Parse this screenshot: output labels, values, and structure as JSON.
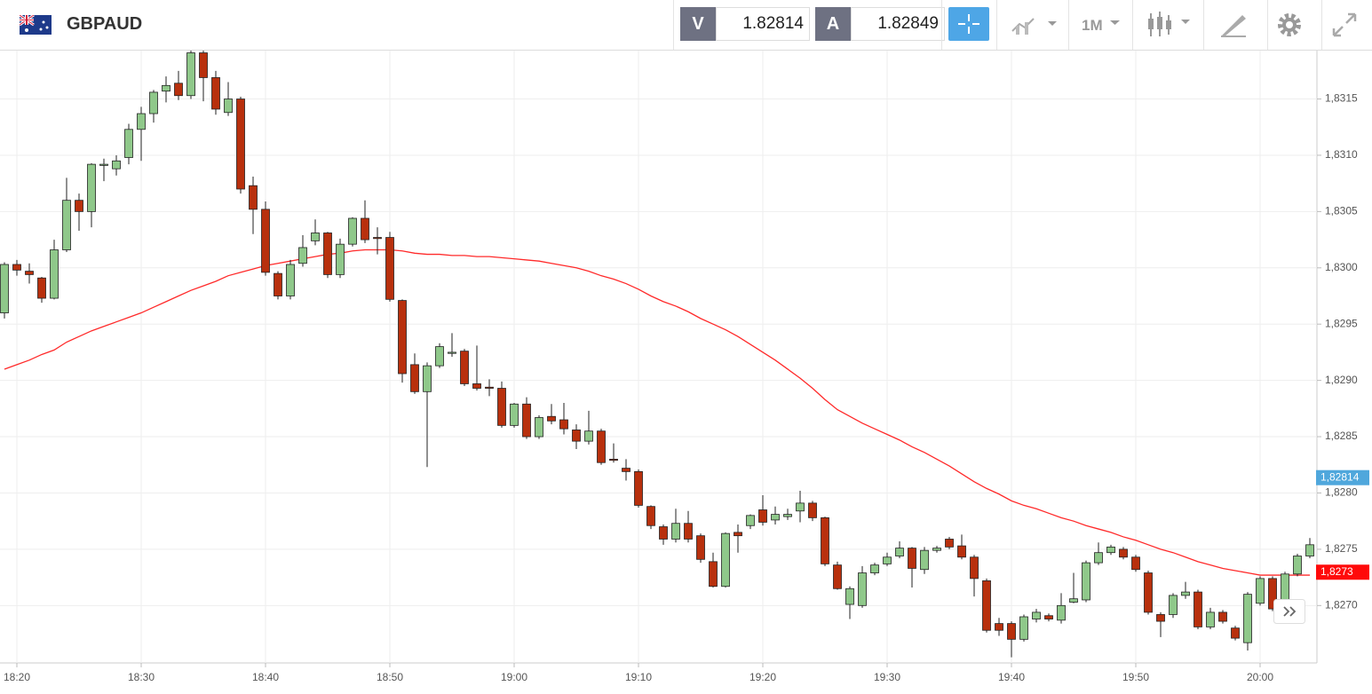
{
  "header": {
    "symbol": "GBPAUD",
    "bid_label": "V",
    "bid": 1.82814,
    "ask_label": "A",
    "ask": 1.82849,
    "timeframe": "1M"
  },
  "chart_data": {
    "type": "candlestick",
    "categories": [
      null,
      "18:20",
      null,
      null,
      null,
      null,
      null,
      null,
      null,
      null,
      null,
      "18:30",
      null,
      null,
      null,
      null,
      null,
      null,
      null,
      null,
      null,
      "18:40",
      null,
      null,
      null,
      null,
      null,
      null,
      null,
      null,
      null,
      "18:50",
      null,
      null,
      null,
      null,
      null,
      null,
      null,
      null,
      null,
      "19:00",
      null,
      null,
      null,
      null,
      null,
      null,
      null,
      null,
      null,
      "19:10",
      null,
      null,
      null,
      null,
      null,
      null,
      null,
      null,
      null,
      "19:20",
      null,
      null,
      null,
      null,
      null,
      null,
      null,
      null,
      null,
      "19:30",
      null,
      null,
      null,
      null,
      null,
      null,
      null,
      null,
      null,
      "19:40",
      null,
      null,
      null,
      null,
      null,
      null,
      null,
      null,
      null,
      "19:50",
      null,
      null,
      null,
      null,
      null,
      null,
      null,
      null,
      null,
      "20:00",
      null,
      null,
      null,
      null
    ],
    "open": [
      1.8296,
      1.83003,
      1.82997,
      1.82991,
      1.82973,
      1.83016,
      1.8306,
      1.8305,
      1.83091,
      1.83088,
      1.83098,
      1.83123,
      1.83137,
      1.83157,
      1.83164,
      1.83153,
      1.83191,
      1.83169,
      1.83138,
      1.8315,
      1.83073,
      1.83052,
      1.82995,
      1.82975,
      1.83004,
      1.83024,
      1.83031,
      1.82994,
      1.83021,
      1.83044,
      1.83027,
      1.83027,
      1.82971,
      1.82914,
      1.8289,
      1.82913,
      1.82924,
      1.82926,
      1.82897,
      1.82894,
      1.82893,
      1.8286,
      1.82879,
      1.8285,
      1.82868,
      1.82865,
      1.82856,
      1.82846,
      1.82855,
      1.8283,
      1.82822,
      1.82819,
      1.82788,
      1.8277,
      1.82759,
      1.82773,
      1.82762,
      1.82739,
      1.82717,
      1.82765,
      1.82771,
      1.82785,
      1.82776,
      1.82779,
      1.82784,
      1.82791,
      1.82778,
      1.82736,
      1.82701,
      1.827,
      1.82729,
      1.82737,
      1.82744,
      1.82751,
      1.82732,
      1.82749,
      1.82759,
      1.82753,
      1.82743,
      1.82722,
      1.82684,
      1.82684,
      1.8267,
      1.82688,
      1.82691,
      1.82687,
      1.82703,
      1.82705,
      1.82738,
      1.82747,
      1.8275,
      1.82743,
      1.82729,
      1.82692,
      1.82692,
      1.82709,
      1.82712,
      1.82681,
      1.82694,
      1.8268,
      1.82667,
      1.82702,
      1.82724,
      1.82697,
      1.82728,
      1.82744
    ],
    "high": [
      1.83005,
      1.83007,
      1.83004,
      1.82992,
      1.83025,
      1.8308,
      1.83066,
      1.83093,
      1.83097,
      1.831,
      1.83128,
      1.83143,
      1.83158,
      1.8317,
      1.83175,
      1.83193,
      1.83193,
      1.83175,
      1.83165,
      1.83152,
      1.83081,
      1.83059,
      1.82997,
      1.83007,
      1.83029,
      1.83043,
      1.83032,
      1.83026,
      1.83045,
      1.8306,
      1.83036,
      1.83032,
      1.82972,
      1.82924,
      1.82916,
      1.82933,
      1.82942,
      1.82928,
      1.82931,
      1.82901,
      1.82899,
      1.8288,
      1.82885,
      1.82869,
      1.82879,
      1.8288,
      1.82861,
      1.82873,
      1.82857,
      1.82844,
      1.8283,
      1.82821,
      1.82789,
      1.82772,
      1.82786,
      1.82784,
      1.82764,
      1.82747,
      1.82765,
      1.82772,
      1.82781,
      1.82798,
      1.82788,
      1.82786,
      1.82802,
      1.82793,
      1.82779,
      1.82739,
      1.82717,
      1.82735,
      1.82738,
      1.82747,
      1.82757,
      1.82752,
      1.82752,
      1.82753,
      1.82761,
      1.82763,
      1.82745,
      1.82724,
      1.82689,
      1.82686,
      1.82692,
      1.82697,
      1.82693,
      1.82711,
      1.82729,
      1.8274,
      1.82756,
      1.82754,
      1.82752,
      1.82745,
      1.82731,
      1.82694,
      1.82711,
      1.82721,
      1.82714,
      1.82698,
      1.82696,
      1.82682,
      1.82712,
      1.82726,
      1.82726,
      1.8273,
      1.82746,
      1.8276
    ],
    "low": [
      1.82955,
      1.82993,
      1.82986,
      1.82969,
      1.82972,
      1.83014,
      1.83033,
      1.83036,
      1.83077,
      1.83082,
      1.83092,
      1.83095,
      1.83129,
      1.83147,
      1.83149,
      1.8315,
      1.83148,
      1.83136,
      1.83135,
      1.83066,
      1.8303,
      1.82993,
      1.82972,
      1.82972,
      1.83001,
      1.8302,
      1.82991,
      1.82991,
      1.83019,
      1.83022,
      1.83012,
      1.8297,
      1.82898,
      1.82888,
      1.82823,
      1.82911,
      1.82921,
      1.82895,
      1.82891,
      1.82886,
      1.82858,
      1.82858,
      1.82848,
      1.82848,
      1.82861,
      1.82852,
      1.82839,
      1.82843,
      1.82825,
      1.82827,
      1.82811,
      1.82787,
      1.82768,
      1.82754,
      1.82756,
      1.82756,
      1.82738,
      1.82716,
      1.82716,
      1.82747,
      1.82768,
      1.82771,
      1.82772,
      1.82776,
      1.82774,
      1.82775,
      1.82735,
      1.82714,
      1.82688,
      1.82698,
      1.82727,
      1.82735,
      1.82742,
      1.82716,
      1.82728,
      1.82747,
      1.8275,
      1.82741,
      1.82708,
      1.82676,
      1.82673,
      1.82654,
      1.82668,
      1.82685,
      1.82686,
      1.82684,
      1.82702,
      1.82703,
      1.82736,
      1.82745,
      1.82741,
      1.8273,
      1.82692,
      1.82672,
      1.82689,
      1.82706,
      1.82679,
      1.82679,
      1.82684,
      1.82669,
      1.8266,
      1.827,
      1.82695,
      1.82695,
      1.82726,
      1.82742
    ],
    "close": [
      1.83003,
      1.82998,
      1.82994,
      1.82973,
      1.83016,
      1.8306,
      1.8305,
      1.83092,
      1.83092,
      1.83095,
      1.83123,
      1.83137,
      1.83156,
      1.83162,
      1.83153,
      1.83191,
      1.83169,
      1.83141,
      1.8315,
      1.8307,
      1.83052,
      1.82996,
      1.82975,
      1.83003,
      1.83018,
      1.83031,
      1.82994,
      1.83021,
      1.83044,
      1.83025,
      1.83026,
      1.82972,
      1.82906,
      1.8289,
      1.82913,
      1.8293,
      1.82925,
      1.82897,
      1.82893,
      1.82893,
      1.8286,
      1.82879,
      1.8285,
      1.82867,
      1.82864,
      1.82857,
      1.82846,
      1.82855,
      1.82827,
      1.82829,
      1.82819,
      1.82789,
      1.82771,
      1.82759,
      1.82773,
      1.82759,
      1.82741,
      1.82717,
      1.82764,
      1.82762,
      1.8278,
      1.82774,
      1.82781,
      1.82781,
      1.82791,
      1.82778,
      1.82737,
      1.82715,
      1.82715,
      1.82729,
      1.82736,
      1.82743,
      1.82751,
      1.82733,
      1.82749,
      1.82751,
      1.82752,
      1.82743,
      1.82724,
      1.82678,
      1.82678,
      1.8267,
      1.8269,
      1.82694,
      1.82688,
      1.827,
      1.82706,
      1.82738,
      1.82747,
      1.82752,
      1.82743,
      1.82732,
      1.82694,
      1.82686,
      1.82709,
      1.82712,
      1.82681,
      1.82694,
      1.82686,
      1.82671,
      1.8271,
      1.82724,
      1.82697,
      1.82728,
      1.82744,
      1.82754
    ],
    "up_color": "#8fc88a",
    "down_color": "#b8300d",
    "moving_average": {
      "color": "#ff2a2a",
      "values": [
        1.8291,
        1.82914,
        1.82918,
        1.82923,
        1.82927,
        1.82934,
        1.82939,
        1.82944,
        1.82948,
        1.82952,
        1.82956,
        1.8296,
        1.82965,
        1.8297,
        1.82975,
        1.8298,
        1.82984,
        1.82988,
        1.82993,
        1.82996,
        1.82999,
        1.83002,
        1.83004,
        1.83006,
        1.83008,
        1.8301,
        1.83012,
        1.83013,
        1.83015,
        1.83016,
        1.83016,
        1.83016,
        1.83015,
        1.83013,
        1.83012,
        1.83012,
        1.83011,
        1.83011,
        1.8301,
        1.8301,
        1.83009,
        1.83008,
        1.83007,
        1.83006,
        1.83004,
        1.83002,
        1.83,
        1.82997,
        1.82993,
        1.8299,
        1.82986,
        1.82981,
        1.82975,
        1.8297,
        1.82966,
        1.82961,
        1.82955,
        1.8295,
        1.82945,
        1.82939,
        1.82932,
        1.82925,
        1.82918,
        1.8291,
        1.82902,
        1.82893,
        1.82883,
        1.82874,
        1.82868,
        1.82862,
        1.82857,
        1.82852,
        1.82847,
        1.82841,
        1.82836,
        1.8283,
        1.82824,
        1.82817,
        1.8281,
        1.82804,
        1.82799,
        1.82793,
        1.82789,
        1.82786,
        1.82782,
        1.82778,
        1.82775,
        1.82771,
        1.82768,
        1.82765,
        1.82761,
        1.82758,
        1.82754,
        1.8275,
        1.82747,
        1.82743,
        1.82739,
        1.82736,
        1.82733,
        1.82731,
        1.82729,
        1.82727,
        1.82727,
        1.82727,
        1.82727,
        1.82727
      ]
    },
    "ylim": [
      1.82649,
      1.83193
    ],
    "yticks": [
      {
        "value": 1.827,
        "label": "1,8270"
      },
      {
        "value": 1.8275,
        "label": "1,8275"
      },
      {
        "value": 1.828,
        "label": "1,8280"
      },
      {
        "value": 1.8285,
        "label": "1,8285"
      },
      {
        "value": 1.829,
        "label": "1,8290"
      },
      {
        "value": 1.8295,
        "label": "1,8295"
      },
      {
        "value": 1.83,
        "label": "1,8300"
      },
      {
        "value": 1.8305,
        "label": "1,8305"
      },
      {
        "value": 1.831,
        "label": "1,8310"
      },
      {
        "value": 1.8315,
        "label": "1,8315"
      }
    ],
    "price_labels": [
      {
        "value": 1.82814,
        "label": "1,82814",
        "color": "#4fa7dc"
      },
      {
        "value": 1.8273,
        "label": "1,8273",
        "color": "#ff0a0a"
      }
    ],
    "grid": true
  }
}
